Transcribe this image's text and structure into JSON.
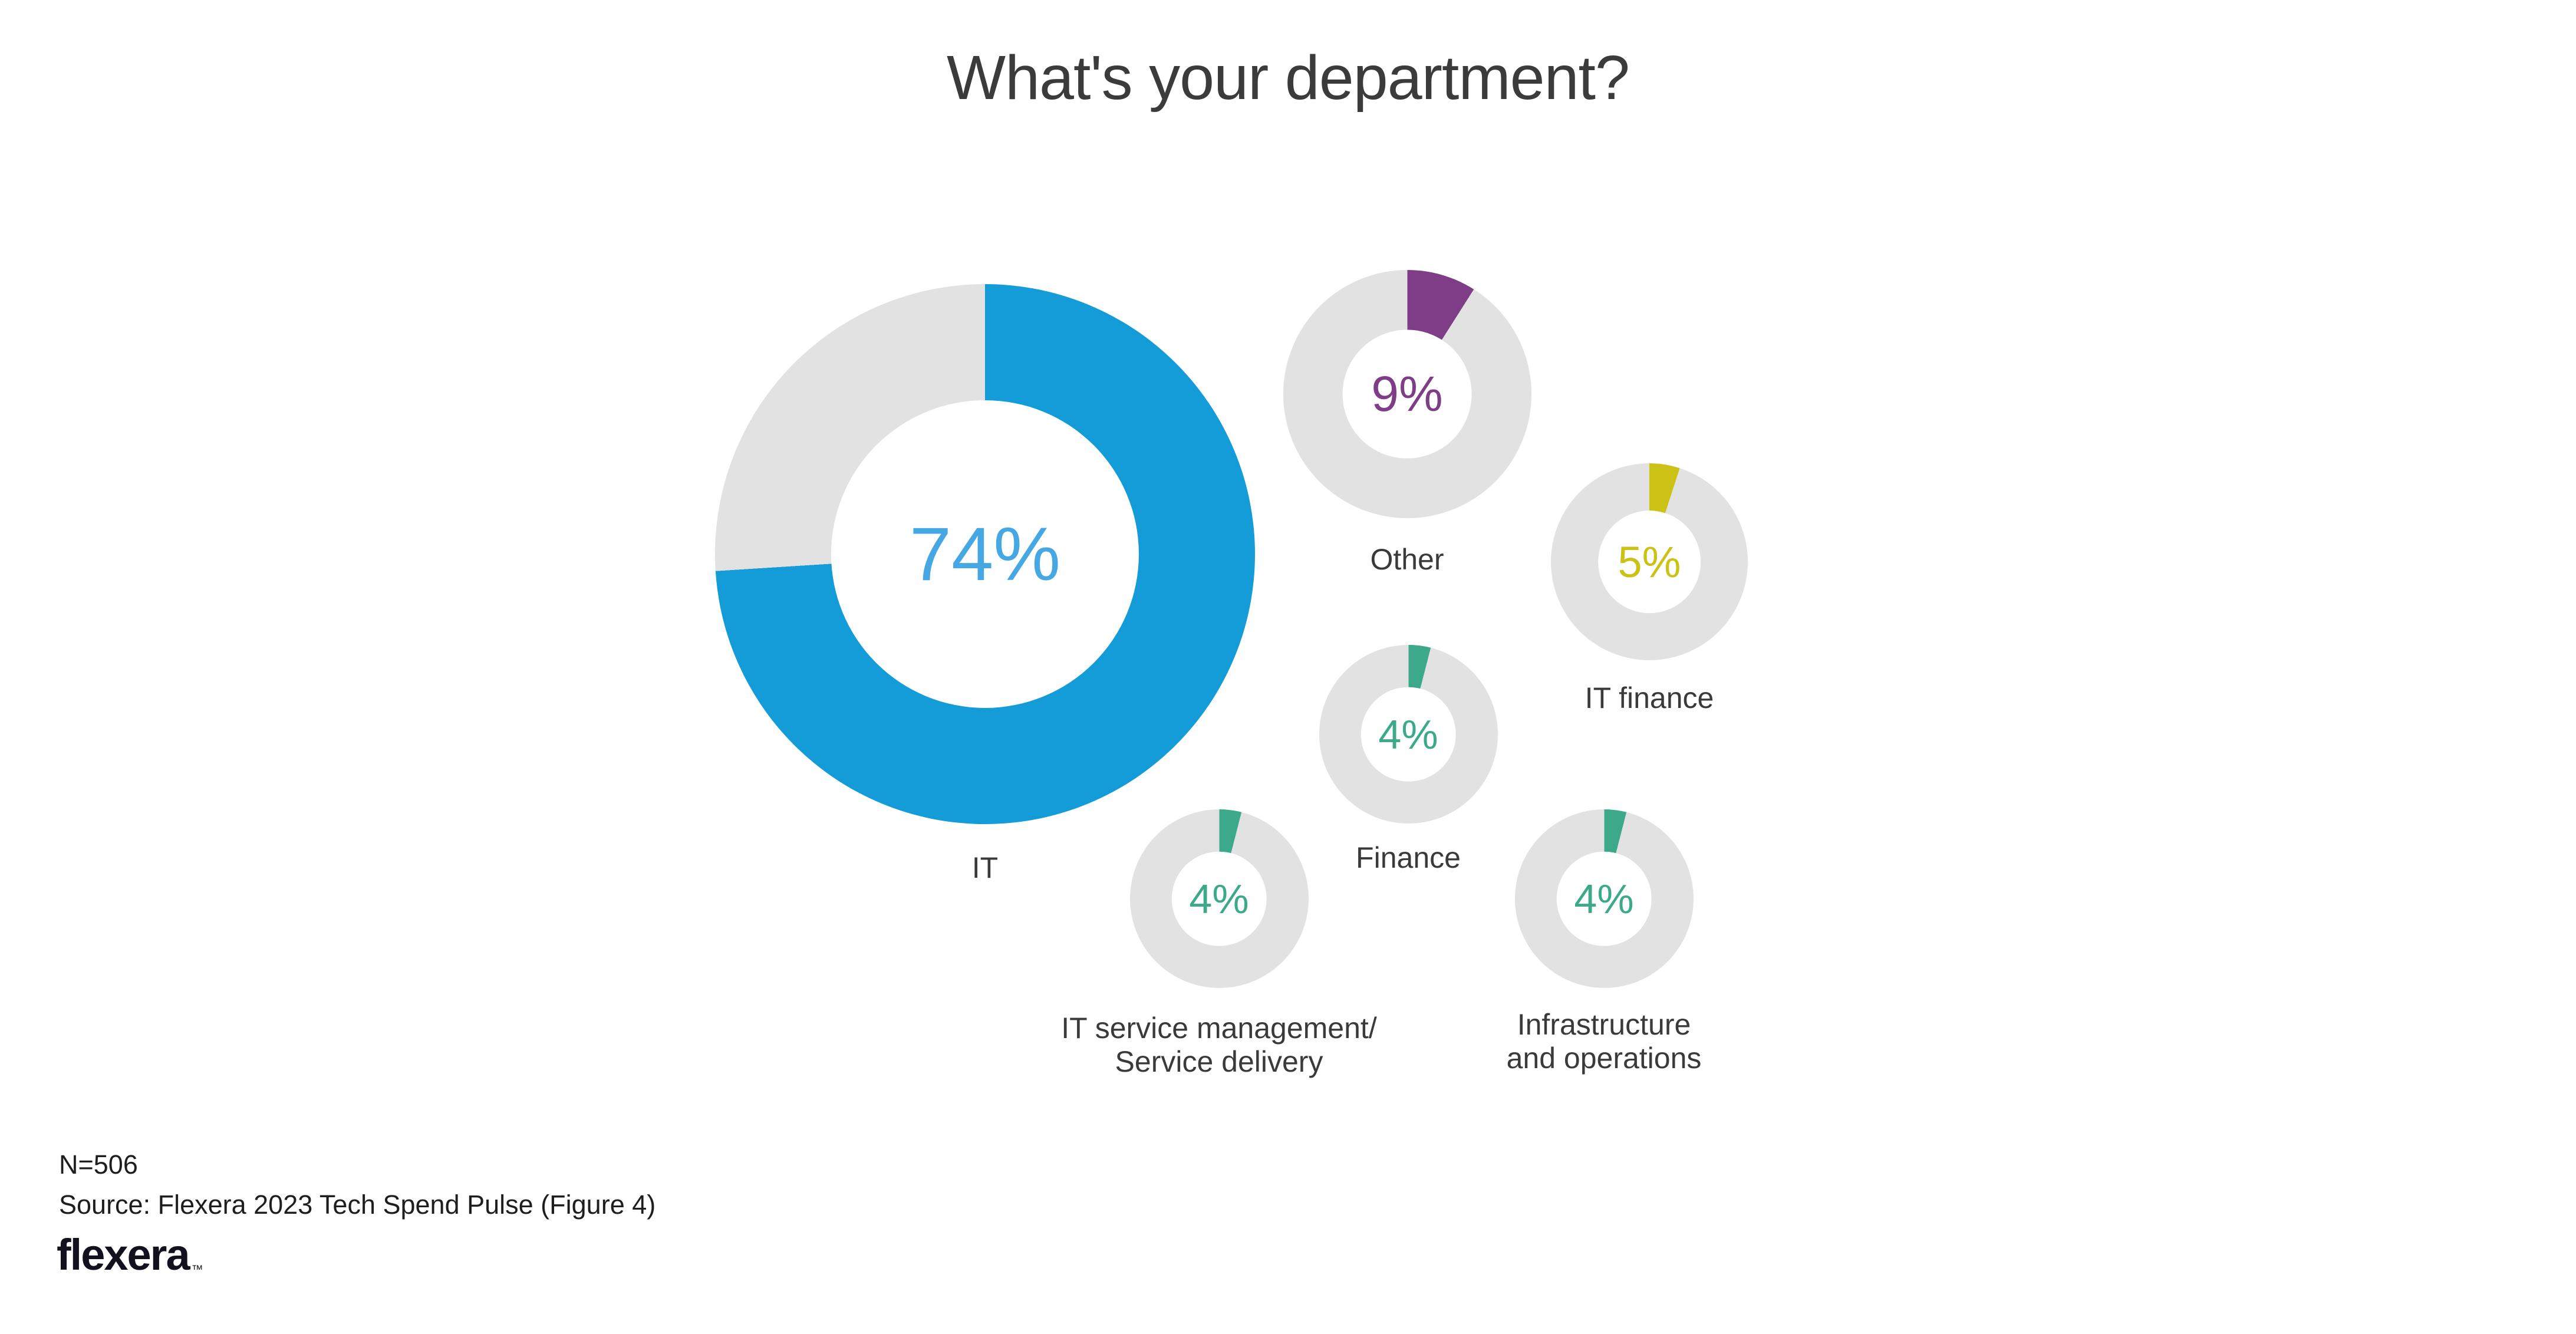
{
  "chart_data": {
    "type": "pie",
    "subtype": "multi-donut",
    "title": "What's your department?",
    "value_format": "percent",
    "legend_position": "none",
    "sample_size": 506,
    "track_color": "#e2e2e2",
    "categories": [
      "IT",
      "Other",
      "IT finance",
      "Finance",
      "IT service management/Service delivery",
      "Infrastructure and operations"
    ],
    "values": [
      74,
      9,
      5,
      4,
      4,
      4
    ],
    "donuts": [
      {
        "label": "IT",
        "label_lines": [
          "IT"
        ],
        "value": 74,
        "display": "74%",
        "color": "#149cd8",
        "value_color": "#45a7e3"
      },
      {
        "label": "Other",
        "label_lines": [
          "Other"
        ],
        "value": 9,
        "display": "9%",
        "color": "#7e3d86",
        "value_color": "#7e3d86"
      },
      {
        "label": "IT finance",
        "label_lines": [
          "IT finance"
        ],
        "value": 5,
        "display": "5%",
        "color": "#cbc215",
        "value_color": "#cbc215"
      },
      {
        "label": "Finance",
        "label_lines": [
          "Finance"
        ],
        "value": 4,
        "display": "4%",
        "color": "#3ca98b",
        "value_color": "#3ca98b"
      },
      {
        "label": "IT service management/Service delivery",
        "label_lines": [
          "IT service management/",
          "Service delivery"
        ],
        "value": 4,
        "display": "4%",
        "color": "#3ca98b",
        "value_color": "#3ca98b"
      },
      {
        "label": "Infrastructure and operations",
        "label_lines": [
          "Infrastructure",
          "and operations"
        ],
        "value": 4,
        "display": "4%",
        "color": "#3ca98b",
        "value_color": "#3ca98b"
      }
    ]
  },
  "footer": {
    "sample_size_label": "N=506",
    "source": "Source: Flexera 2023 Tech Spend Pulse (Figure 4)",
    "logo_text": "flexera",
    "trademark": "™"
  }
}
